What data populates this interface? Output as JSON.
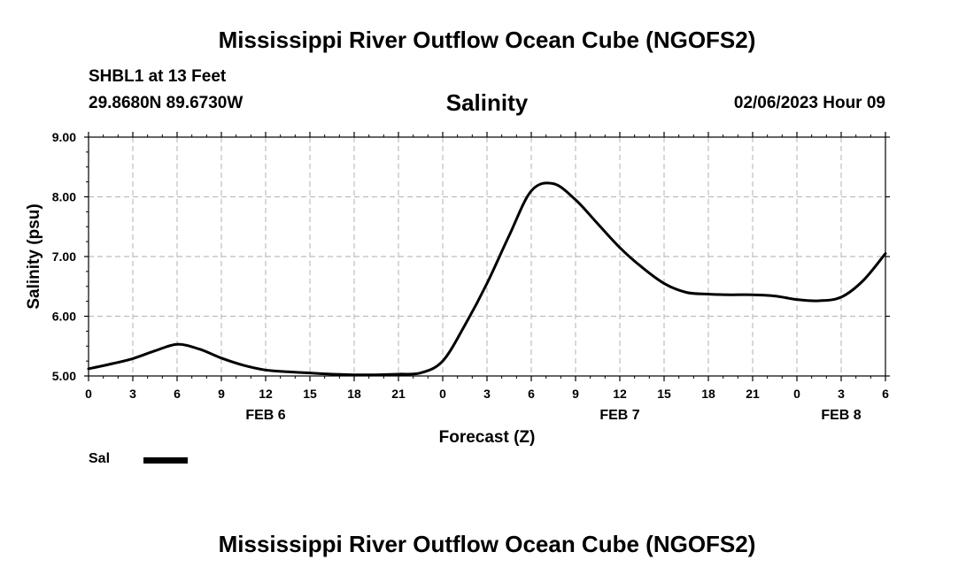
{
  "header": {
    "title": "Mississippi River Outflow Ocean Cube (NGOFS2)",
    "station": "SHBL1 at 13 Feet",
    "coordinates": "29.8680N  89.6730W",
    "chart_title": "Salinity",
    "datetime": "02/06/2023 Hour 09"
  },
  "footer": {
    "title": "Mississippi River Outflow Ocean Cube (NGOFS2)"
  },
  "legend": {
    "label": "Sal",
    "color": "#000000"
  },
  "chart_data": {
    "type": "line",
    "title": "Salinity",
    "xlabel": "Forecast (Z)",
    "ylabel": "Salinity (psu)",
    "xlim": [
      0,
      54
    ],
    "ylim": [
      5.0,
      9.0
    ],
    "grid": true,
    "yticks": [
      "5.00",
      "6.00",
      "7.00",
      "8.00",
      "9.00"
    ],
    "xtick_labels": [
      "0",
      "3",
      "6",
      "9",
      "12",
      "15",
      "18",
      "21",
      "0",
      "3",
      "6",
      "9",
      "12",
      "15",
      "18",
      "21",
      "0",
      "3",
      "6"
    ],
    "date_labels": [
      {
        "label": "FEB 6",
        "hour": 12
      },
      {
        "label": "FEB 7",
        "hour": 36
      },
      {
        "label": "FEB 8",
        "hour": 51
      }
    ],
    "series": [
      {
        "name": "Sal",
        "x": [
          0,
          1.5,
          3,
          4.5,
          6,
          7.5,
          9,
          10.5,
          12,
          13.5,
          15,
          16.5,
          18,
          19.5,
          21,
          22.5,
          24,
          25.5,
          27,
          28.5,
          30,
          31.5,
          33,
          34.5,
          36,
          37.5,
          39,
          40.5,
          42,
          43.5,
          45,
          46.5,
          48,
          49.5,
          51,
          52.5,
          54
        ],
        "y": [
          5.12,
          5.2,
          5.29,
          5.42,
          5.53,
          5.45,
          5.3,
          5.18,
          5.1,
          5.07,
          5.05,
          5.03,
          5.02,
          5.02,
          5.03,
          5.05,
          5.25,
          5.85,
          6.55,
          7.35,
          8.1,
          8.22,
          7.95,
          7.55,
          7.15,
          6.82,
          6.55,
          6.4,
          6.37,
          6.36,
          6.36,
          6.34,
          6.28,
          6.26,
          6.32,
          6.6,
          7.05
        ]
      }
    ]
  }
}
